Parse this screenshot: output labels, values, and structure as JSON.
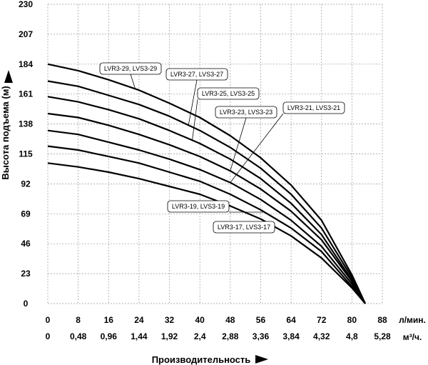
{
  "chart_data": {
    "type": "line",
    "ylabel": "Высота подъема (м)",
    "xlabel": "Производительность",
    "x_unit_top": "л/мин.",
    "x_unit_bottom": "м³/ч.",
    "ylim": [
      0,
      230
    ],
    "xlim": [
      0,
      88
    ],
    "y_ticks": [
      "0",
      "23",
      "46",
      "69",
      "92",
      "115",
      "138",
      "161",
      "184",
      "207",
      "230"
    ],
    "x_ticks_lpm": [
      "0",
      "8",
      "16",
      "24",
      "32",
      "40",
      "48",
      "56",
      "64",
      "72",
      "80",
      "88"
    ],
    "x_ticks_m3h": [
      "0",
      "0,48",
      "0,96",
      "1,44",
      "1,92",
      "2,4",
      "2,88",
      "3,36",
      "3,84",
      "4,32",
      "4,8",
      "5,28"
    ],
    "grid": true,
    "series": [
      {
        "name": "LVR3-29, LVS3-29",
        "x": [
          0,
          8,
          16,
          24,
          32,
          40,
          48,
          56,
          64,
          72,
          80,
          83.5
        ],
        "y": [
          184,
          179,
          172,
          164,
          154,
          143,
          129,
          112,
          91,
          64,
          22,
          0
        ]
      },
      {
        "name": "LVR3-27, LVS3-27",
        "x": [
          0,
          8,
          16,
          24,
          32,
          40,
          48,
          56,
          64,
          72,
          80,
          83.5
        ],
        "y": [
          171,
          167,
          160,
          153,
          144,
          133,
          120,
          104,
          84,
          58,
          20,
          0
        ]
      },
      {
        "name": "LVR3-25, LVS3-25",
        "x": [
          0,
          8,
          16,
          24,
          32,
          40,
          48,
          56,
          64,
          72,
          80,
          83.5
        ],
        "y": [
          159,
          155,
          149,
          142,
          133,
          123,
          111,
          96,
          77,
          53,
          18,
          0
        ]
      },
      {
        "name": "LVR3-23, LVS3-23",
        "x": [
          0,
          8,
          16,
          24,
          32,
          40,
          48,
          56,
          64,
          72,
          80,
          83.5
        ],
        "y": [
          146,
          143,
          137,
          130,
          122,
          113,
          102,
          88,
          71,
          49,
          17,
          0
        ]
      },
      {
        "name": "LVR3-21, LVS3-21",
        "x": [
          0,
          8,
          16,
          24,
          32,
          40,
          48,
          56,
          64,
          72,
          80,
          83.5
        ],
        "y": [
          133,
          130,
          124,
          118,
          111,
          103,
          93,
          80,
          64,
          44,
          15,
          0
        ]
      },
      {
        "name": "LVR3-19, LVS3-19",
        "x": [
          0,
          8,
          16,
          24,
          32,
          40,
          48,
          56,
          64,
          72,
          80,
          83.5
        ],
        "y": [
          121,
          118,
          113,
          108,
          101,
          94,
          84,
          72,
          58,
          40,
          13,
          0
        ]
      },
      {
        "name": "LVR3-17, LVS3-17",
        "x": [
          0,
          8,
          16,
          24,
          32,
          40,
          48,
          56,
          64,
          72,
          80,
          83.5
        ],
        "y": [
          108,
          105,
          101,
          96,
          90,
          84,
          75,
          65,
          52,
          35,
          12,
          0
        ]
      }
    ]
  }
}
